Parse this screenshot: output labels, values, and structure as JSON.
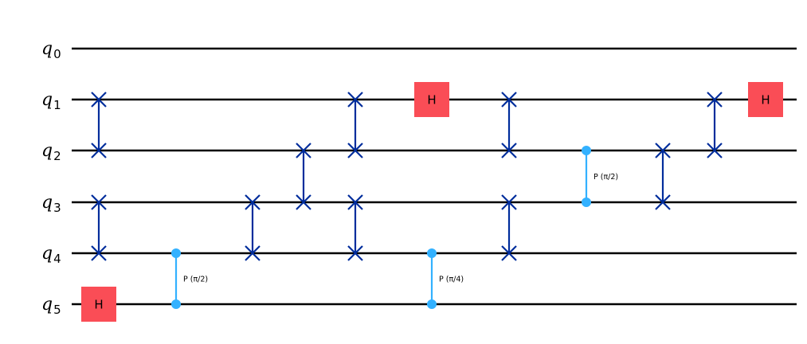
{
  "qubits": [
    {
      "name": "q",
      "index": "0"
    },
    {
      "name": "q",
      "index": "1"
    },
    {
      "name": "q",
      "index": "2"
    },
    {
      "name": "q",
      "index": "3"
    },
    {
      "name": "q",
      "index": "4"
    },
    {
      "name": "q",
      "index": "5"
    }
  ],
  "colors": {
    "wire": "#000000",
    "swap": "#002d9c",
    "hadamard": "#fa4d56",
    "phase": "#33b1ff"
  },
  "gates": [
    {
      "type": "swap",
      "column": 0,
      "qubits": [
        1,
        2
      ]
    },
    {
      "type": "swap",
      "column": 0,
      "qubits": [
        3,
        4
      ]
    },
    {
      "type": "h",
      "column": 0,
      "qubit": 5,
      "label": "H"
    },
    {
      "type": "cp",
      "column": 1,
      "qubits": [
        4,
        5
      ],
      "label": "P (π/2)"
    },
    {
      "type": "swap",
      "column": 2,
      "qubits": [
        3,
        4
      ]
    },
    {
      "type": "swap",
      "column": 3,
      "qubits": [
        2,
        3
      ]
    },
    {
      "type": "swap",
      "column": 4,
      "qubits": [
        1,
        2
      ]
    },
    {
      "type": "swap",
      "column": 4,
      "qubits": [
        3,
        4
      ]
    },
    {
      "type": "h",
      "column": 5,
      "qubit": 1,
      "label": "H"
    },
    {
      "type": "cp",
      "column": 5,
      "qubits": [
        4,
        5
      ],
      "label": "P (π/4)"
    },
    {
      "type": "swap",
      "column": 6,
      "qubits": [
        1,
        2
      ]
    },
    {
      "type": "swap",
      "column": 6,
      "qubits": [
        3,
        4
      ]
    },
    {
      "type": "cp",
      "column": 7,
      "qubits": [
        2,
        3
      ],
      "label": "P (π/2)"
    },
    {
      "type": "swap",
      "column": 8,
      "qubits": [
        2,
        3
      ]
    },
    {
      "type": "swap",
      "column": 9,
      "qubits": [
        1,
        2
      ]
    },
    {
      "type": "h",
      "column": 10,
      "qubit": 1,
      "label": "H"
    }
  ]
}
